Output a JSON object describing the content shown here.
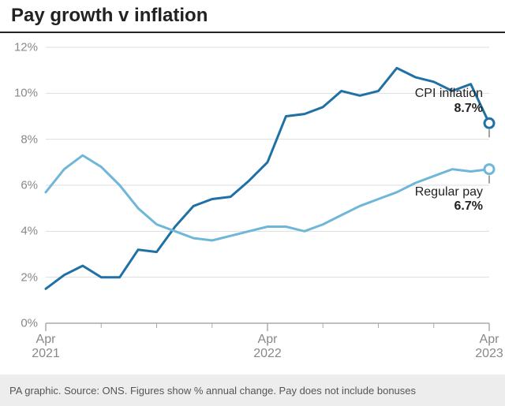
{
  "title": "Pay growth v inflation",
  "footer": "PA graphic. Source: ONS. Figures show % annual change. Pay does not include bonuses",
  "chart": {
    "type": "line",
    "background_color": "#ffffff",
    "grid_color": "#dddddd",
    "axis_color": "#aaaaaa",
    "axis_label_color": "#888888",
    "title_fontsize": 24,
    "label_fontsize": 16,
    "ylim": [
      0,
      12
    ],
    "ytick_step": 2,
    "y_ticks": [
      "0%",
      "2%",
      "4%",
      "6%",
      "8%",
      "10%",
      "12%"
    ],
    "x_domain": [
      0,
      24
    ],
    "x_major_ticks": [
      {
        "index": 0,
        "line1": "Apr",
        "line2": "2021"
      },
      {
        "index": 12,
        "line1": "Apr",
        "line2": "2022"
      },
      {
        "index": 24,
        "line1": "Apr",
        "line2": "2023"
      }
    ],
    "x_minor_tick_interval": 3,
    "series": {
      "cpi": {
        "label": "CPI inflation",
        "end_value_label": "8.7%",
        "color": "#1f71a5",
        "line_width": 3,
        "end_marker": {
          "shape": "circle-open",
          "radius": 6,
          "stroke_width": 3
        },
        "x": [
          0,
          1,
          2,
          3,
          4,
          5,
          6,
          7,
          8,
          9,
          10,
          11,
          12,
          13,
          14,
          15,
          16,
          17,
          18,
          19,
          20,
          21,
          22,
          23,
          24
        ],
        "y": [
          1.5,
          2.1,
          2.5,
          2.0,
          2.0,
          3.2,
          3.1,
          4.2,
          5.1,
          5.4,
          5.5,
          6.2,
          7.0,
          9.0,
          9.1,
          9.4,
          10.1,
          9.9,
          10.1,
          11.1,
          10.7,
          10.5,
          10.1,
          10.4,
          8.7
        ]
      },
      "regular_pay": {
        "label": "Regular pay",
        "end_value_label": "6.7%",
        "color": "#6fb7d9",
        "line_width": 3,
        "end_marker": {
          "shape": "circle-open",
          "radius": 6,
          "stroke_width": 3
        },
        "x": [
          0,
          1,
          2,
          3,
          4,
          5,
          6,
          7,
          8,
          9,
          10,
          11,
          12,
          13,
          14,
          15,
          16,
          17,
          18,
          19,
          20,
          21,
          22,
          23,
          24
        ],
        "y": [
          5.7,
          6.7,
          7.3,
          6.8,
          6.0,
          5.0,
          4.3,
          4.0,
          3.7,
          3.6,
          3.8,
          4.0,
          4.2,
          4.2,
          4.0,
          4.3,
          4.7,
          5.1,
          5.4,
          5.7,
          6.1,
          6.4,
          6.7,
          6.6,
          6.7
        ]
      }
    }
  }
}
